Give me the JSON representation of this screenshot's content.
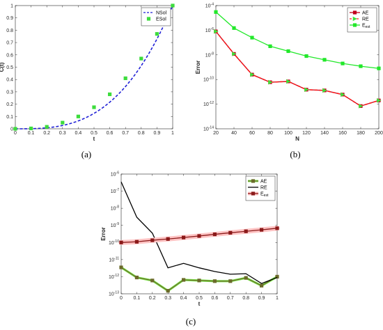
{
  "chart_data": [
    {
      "type": "line",
      "caption": "(a)",
      "xlabel": "t",
      "ylabel": "C(t)",
      "xlim": [
        0,
        1
      ],
      "ylim": [
        0,
        1
      ],
      "yscale": "linear",
      "xticks": [
        0,
        0.1,
        0.2,
        0.3,
        0.4,
        0.5,
        0.6,
        0.7,
        0.8,
        0.9,
        1
      ],
      "xtick_labels": [
        "0",
        "0.1",
        "0.2",
        "0.3",
        "0.4",
        "0.5",
        "0.6",
        "0.7",
        "0.8",
        "0.9",
        "1"
      ],
      "yticks": [
        0,
        0.1,
        0.2,
        0.3,
        0.4,
        0.5,
        0.6,
        0.7,
        0.8,
        0.9,
        1
      ],
      "ytick_labels": [
        "0",
        "0.1",
        "0.2",
        "0.3",
        "0.4",
        "0.5",
        "0.6",
        "0.7",
        "0.8",
        "0.9",
        "1"
      ],
      "legend": "top-right",
      "grid": false,
      "series": [
        {
          "name": "NSol",
          "style": "dashed",
          "color": "#1f1fd6",
          "marker": "none",
          "x": [
            0,
            0.02,
            0.04,
            0.06,
            0.08,
            0.1,
            0.12,
            0.14,
            0.16,
            0.18,
            0.2,
            0.22,
            0.24,
            0.26,
            0.28,
            0.3,
            0.32,
            0.34,
            0.36,
            0.38,
            0.4,
            0.42,
            0.44,
            0.46,
            0.48,
            0.5,
            0.52,
            0.54,
            0.56,
            0.58,
            0.6,
            0.62,
            0.64,
            0.66,
            0.68,
            0.7,
            0.72,
            0.74,
            0.76,
            0.78,
            0.8,
            0.82,
            0.84,
            0.86,
            0.88,
            0.9,
            0.92,
            0.94,
            0.96,
            0.98,
            1
          ],
          "y": [
            0,
            1e-05,
            6e-05,
            0.00022,
            0.00051,
            0.001,
            0.00173,
            0.00274,
            0.0041,
            0.00583,
            0.008,
            0.01065,
            0.01382,
            0.01758,
            0.02195,
            0.027,
            0.03277,
            0.0393,
            0.04666,
            0.05487,
            0.064,
            0.07409,
            0.08518,
            0.09734,
            0.11059,
            0.125,
            0.14061,
            0.15746,
            0.17562,
            0.19511,
            0.216,
            0.23833,
            0.26214,
            0.2875,
            0.31443,
            0.343,
            0.37325,
            0.40522,
            0.43898,
            0.47455,
            0.512,
            0.55137,
            0.5927,
            0.63606,
            0.68147,
            0.729,
            0.77869,
            0.83058,
            0.88474,
            0.94119,
            1
          ]
        },
        {
          "name": "ESol",
          "style": "none",
          "color": "#3ddc3d",
          "marker": "square",
          "x": [
            0,
            0.1,
            0.2,
            0.3,
            0.4,
            0.5,
            0.6,
            0.7,
            0.8,
            0.9,
            1
          ],
          "y": [
            0,
            0.003,
            0.016,
            0.05,
            0.1,
            0.175,
            0.28,
            0.41,
            0.57,
            0.77,
            1
          ]
        }
      ]
    },
    {
      "type": "line",
      "caption": "(b)",
      "xlabel": "N",
      "ylabel": "Error",
      "xlim": [
        20,
        200
      ],
      "ylim": [
        1e-14,
        0.0001
      ],
      "yscale": "log",
      "xticks": [
        20,
        40,
        60,
        80,
        100,
        120,
        140,
        160,
        180,
        200
      ],
      "xtick_labels": [
        "20",
        "40",
        "60",
        "80",
        "100",
        "120",
        "140",
        "160",
        "180",
        "200"
      ],
      "yticks": [
        1e-14,
        1e-12,
        1e-10,
        1e-08,
        1e-06,
        0.0001
      ],
      "ytick_labels": [
        "10-14",
        "10-12",
        "10-10",
        "10-8",
        "10-6",
        "10-4"
      ],
      "legend": "top-right",
      "grid": false,
      "series": [
        {
          "name": "AE",
          "style": "solid",
          "color": "#c0001a",
          "marker": "square",
          "x": [
            20,
            40,
            60,
            80,
            100,
            120,
            140,
            160,
            180,
            200
          ],
          "y": [
            8e-07,
            1.2e-08,
            2.5e-10,
            6e-11,
            7e-11,
            1.5e-11,
            1.3e-11,
            6e-12,
            7e-13,
            2e-12
          ]
        },
        {
          "name": "RE",
          "style": "dashed",
          "color": "#ff1a1a",
          "marker": "triangle-right",
          "x": [
            20,
            40,
            60,
            80,
            100,
            120,
            140,
            160,
            180,
            200
          ],
          "y": [
            8e-07,
            1.2e-08,
            2.5e-10,
            6e-11,
            7e-11,
            1.5e-11,
            1.3e-11,
            6e-12,
            7e-13,
            2e-12
          ]
        },
        {
          "name": "E_est",
          "style": "solid",
          "color": "#22e82a",
          "marker": "square",
          "x": [
            20,
            40,
            60,
            80,
            100,
            120,
            140,
            160,
            180,
            200
          ],
          "y": [
            3e-05,
            1.5e-06,
            2.5e-07,
            5e-08,
            2e-08,
            8e-09,
            4e-09,
            2e-09,
            1.2e-09,
            8e-10
          ]
        }
      ]
    },
    {
      "type": "line",
      "caption": "(c)",
      "xlabel": "t",
      "ylabel": "Error",
      "xlim": [
        0,
        1
      ],
      "ylim": [
        1e-13,
        1e-06
      ],
      "yscale": "log",
      "xticks": [
        0,
        0.1,
        0.2,
        0.3,
        0.4,
        0.5,
        0.6,
        0.7,
        0.8,
        0.9,
        1
      ],
      "xtick_labels": [
        "0",
        "0.1",
        "0.2",
        "0.3",
        "0.4",
        "0.5",
        "0.6",
        "0.7",
        "0.8",
        "0.9",
        "1"
      ],
      "yticks": [
        1e-13,
        1e-12,
        1e-11,
        1e-10,
        1e-09,
        1e-08,
        1e-07,
        1e-06
      ],
      "ytick_labels": [
        "10-13",
        "10-12",
        "10-11",
        "10-10",
        "10-9",
        "10-8",
        "10-7",
        "10-6"
      ],
      "legend": "top-right",
      "grid": false,
      "series": [
        {
          "name": "AE",
          "style": "solid",
          "color": "#6b6b2a",
          "line_under": "#7be84a",
          "marker": "square",
          "x": [
            0,
            0.1,
            0.2,
            0.3,
            0.4,
            0.5,
            0.6,
            0.7,
            0.8,
            0.9,
            1
          ],
          "y": [
            3.5e-12,
            9e-13,
            6e-13,
            1.5e-13,
            6.5e-13,
            6e-13,
            5.5e-13,
            5.5e-13,
            8.5e-13,
            3e-13,
            1e-12
          ]
        },
        {
          "name": "RE",
          "style": "solid",
          "color": "#000000",
          "marker": "none",
          "x": [
            0,
            0.1,
            0.2,
            0.3,
            0.4,
            0.5,
            0.6,
            0.7,
            0.8,
            0.9,
            1
          ],
          "y": [
            3.5e-07,
            3e-09,
            3.5e-10,
            3.3e-12,
            6e-12,
            3.3e-12,
            2e-12,
            1.4e-12,
            1.5e-12,
            4e-13,
            9e-13
          ]
        },
        {
          "name": "E_est",
          "style": "solid",
          "color": "#8b1a1a",
          "band": "#ffc4c4",
          "marker": "square",
          "x": [
            0,
            0.1,
            0.2,
            0.3,
            0.4,
            0.5,
            0.6,
            0.7,
            0.8,
            0.9,
            1
          ],
          "y": [
            1e-10,
            1.1e-10,
            1.35e-10,
            1.6e-10,
            1.95e-10,
            2.4e-10,
            3e-10,
            3.7e-10,
            4.5e-10,
            5.5e-10,
            6.8e-10
          ]
        }
      ]
    }
  ]
}
